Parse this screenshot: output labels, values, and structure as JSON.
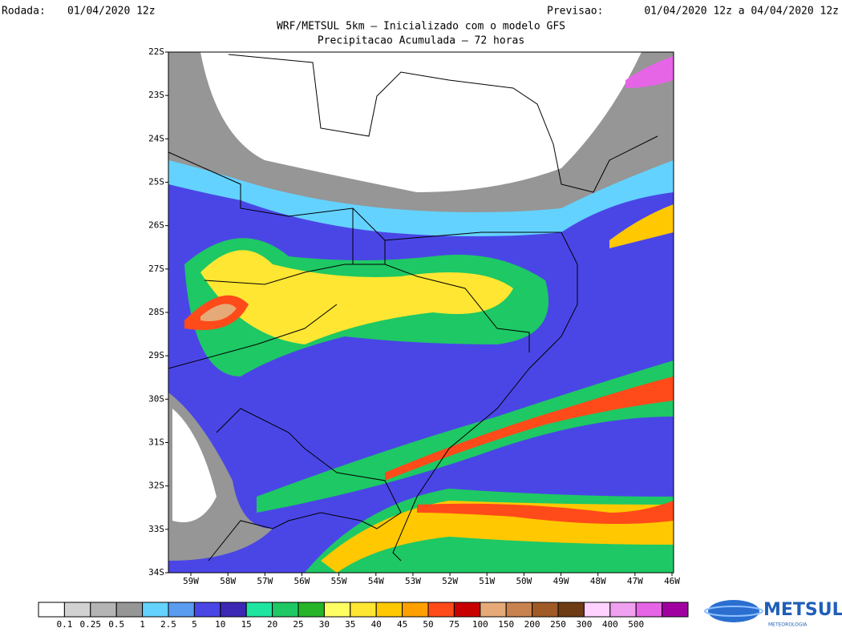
{
  "header": {
    "run_label": "Rodada:",
    "run_value": "01/04/2020 12z",
    "valid_label": "Previsao:",
    "valid_value": "01/04/2020 12z a 04/04/2020 12z",
    "title": "WRF/METSUL 5km — Inicializado com o modelo GFS",
    "subtitle": "Precipitacao Acumulada — 72 horas"
  },
  "map": {
    "lat_labels": [
      "22S",
      "23S",
      "24S",
      "25S",
      "26S",
      "27S",
      "28S",
      "29S",
      "30S",
      "31S",
      "32S",
      "33S",
      "34S"
    ],
    "lon_labels": [
      "59W",
      "58W",
      "57W",
      "56W",
      "55W",
      "54W",
      "53W",
      "52W",
      "51W",
      "50W",
      "49W",
      "48W",
      "47W",
      "46W"
    ]
  },
  "legend": {
    "labels": [
      "0.1",
      "0.25",
      "0.5",
      "1",
      "2.5",
      "5",
      "10",
      "15",
      "20",
      "25",
      "30",
      "35",
      "40",
      "45",
      "50",
      "75",
      "100",
      "150",
      "200",
      "250",
      "300",
      "400",
      "500"
    ],
    "colors": [
      "#ffffff",
      "#d2d2d2",
      "#b4b4b4",
      "#969696",
      "#64d2ff",
      "#5a9cf0",
      "#4a46e6",
      "#3c28b4",
      "#1ee6a0",
      "#1ec864",
      "#28b428",
      "#ffff64",
      "#ffe632",
      "#ffc800",
      "#ffa000",
      "#ff4a1a",
      "#c80000",
      "#e6aa78",
      "#c88250",
      "#a05a28",
      "#6e3c14",
      "#ffd2ff",
      "#f0a0f0",
      "#e664e6",
      "#a000a0"
    ]
  },
  "logo": {
    "name": "METSUL",
    "tagline": "METEOROLOGIA"
  }
}
